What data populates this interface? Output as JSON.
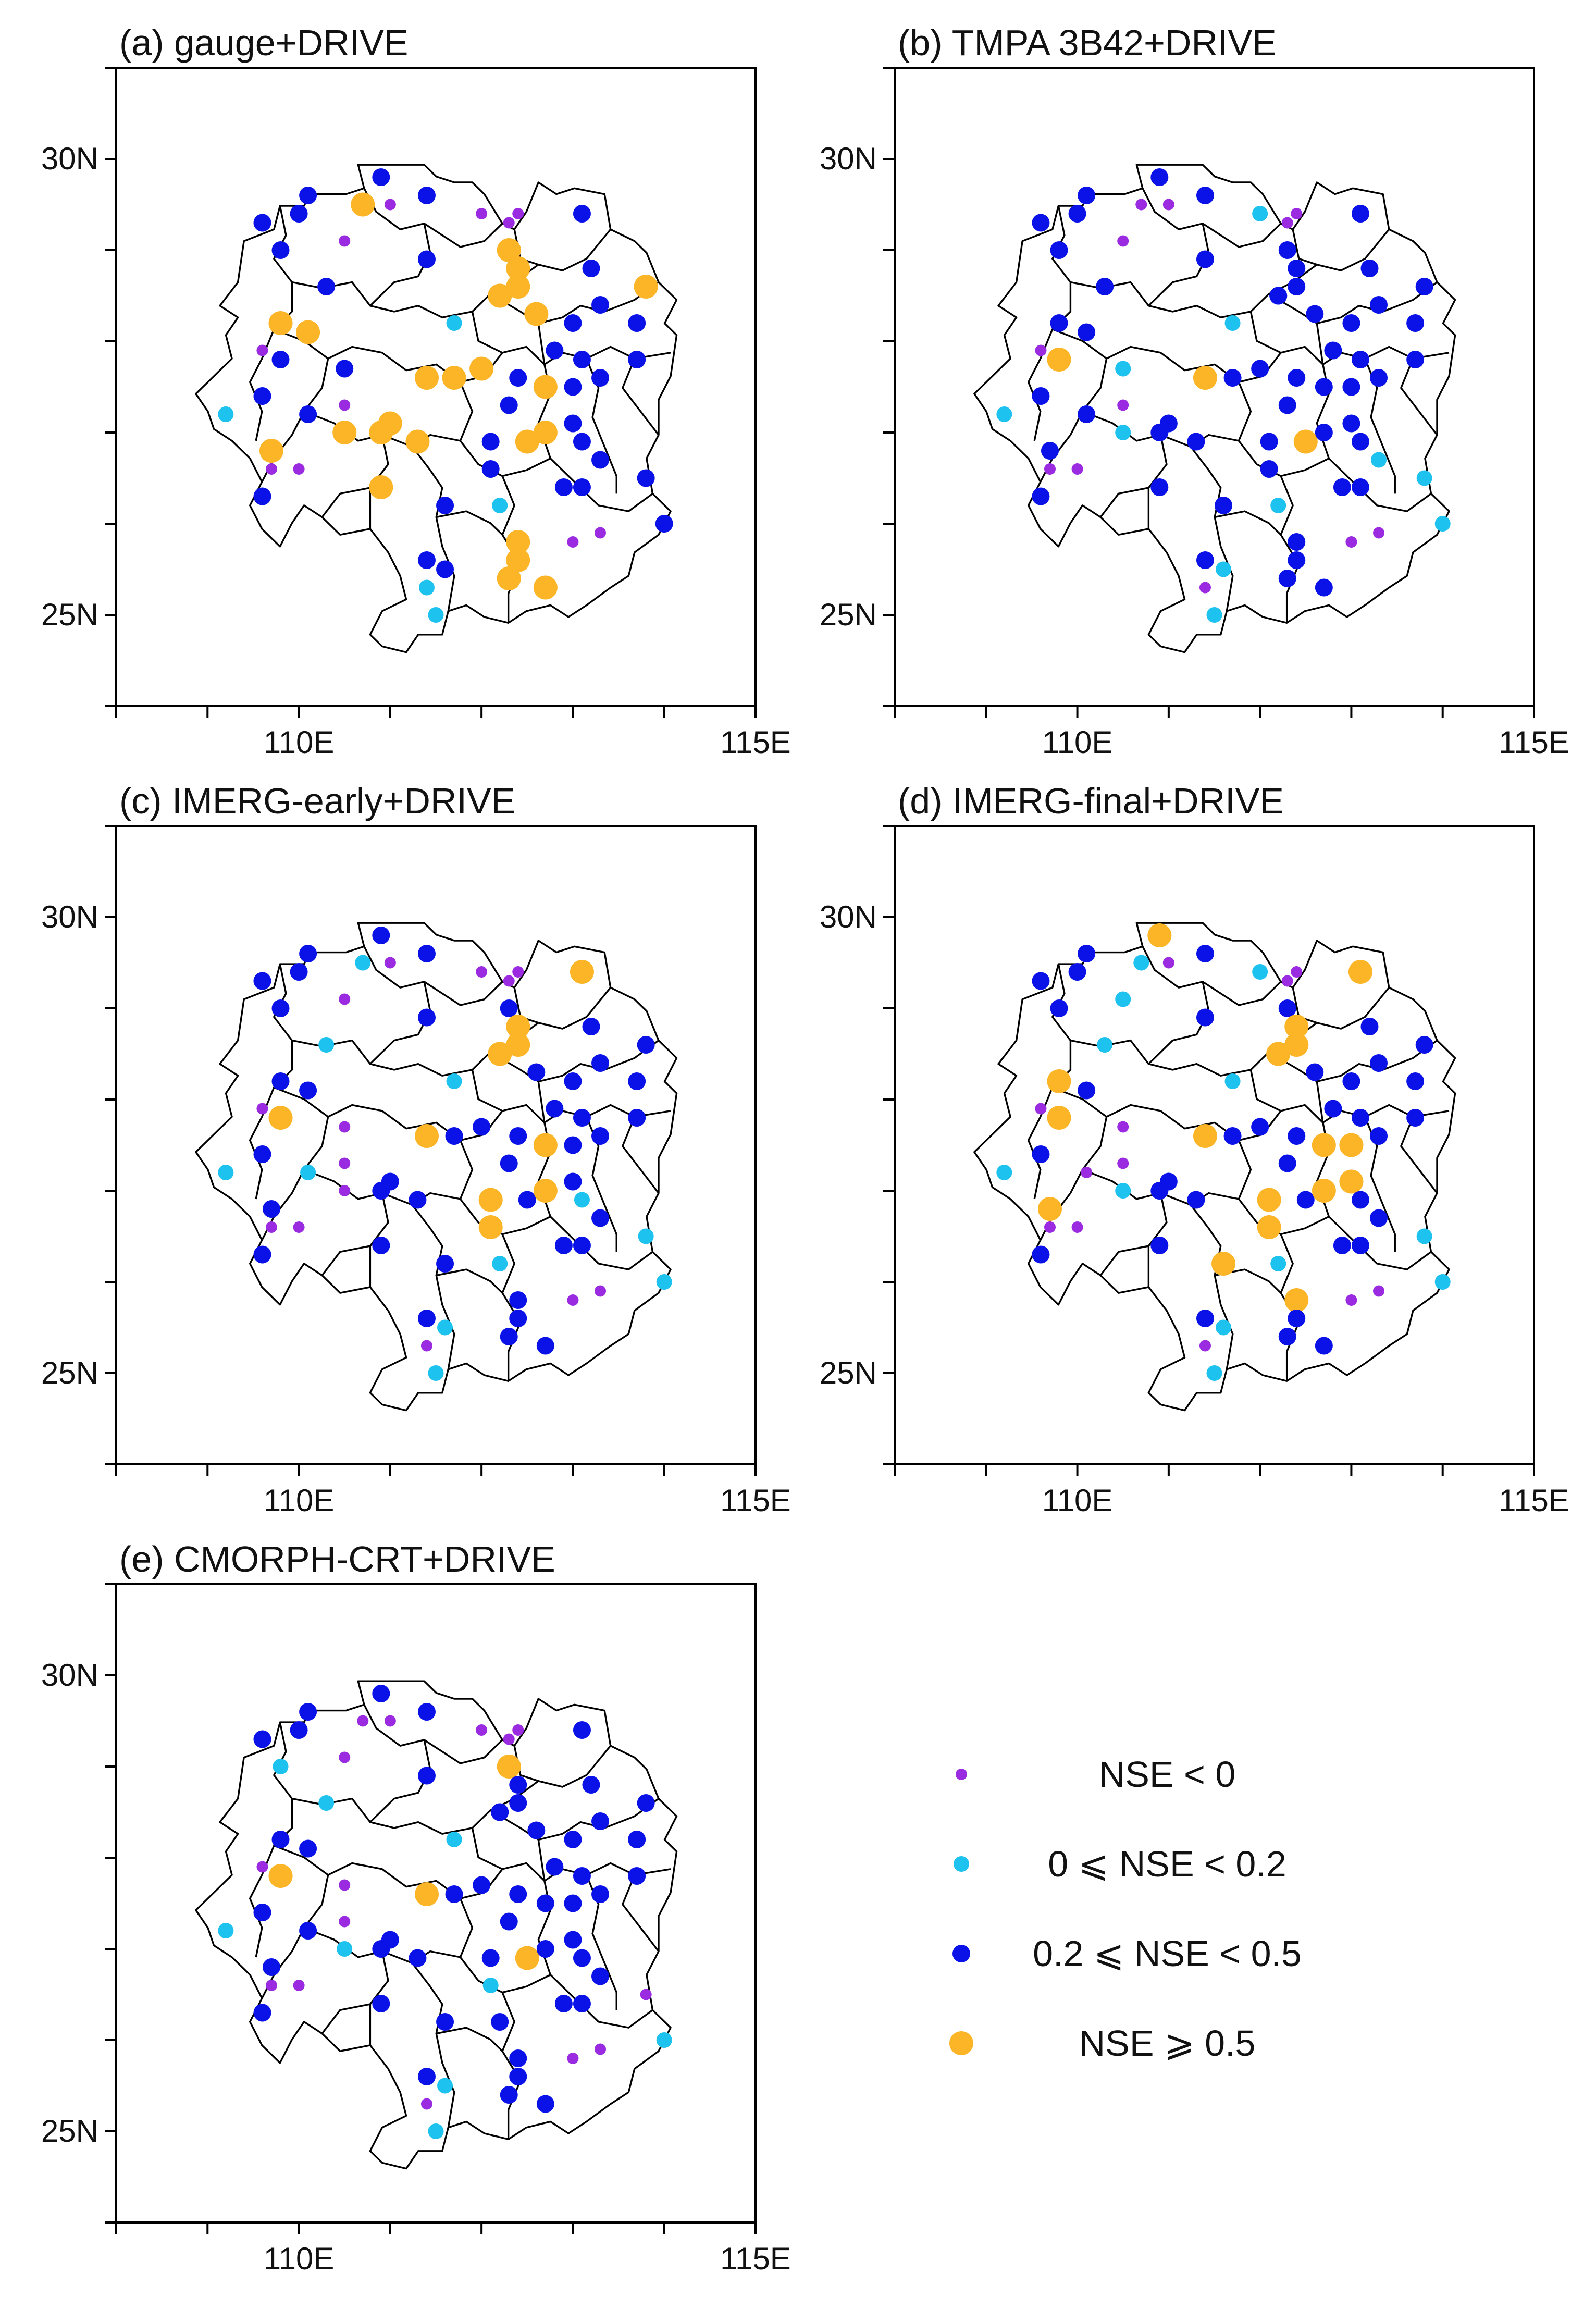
{
  "figure": {
    "lon_range": [
      108,
      115
    ],
    "lat_range": [
      24,
      31
    ],
    "lon_ticks": [
      108,
      109,
      110,
      111,
      112,
      113,
      114,
      115
    ],
    "lat_ticks": [
      24,
      25,
      26,
      27,
      28,
      29,
      30,
      31
    ],
    "lon_labels": [
      {
        "lon": 110,
        "text": "110E"
      },
      {
        "lon": 115,
        "text": "115E"
      }
    ],
    "lat_labels": [
      {
        "lat": 30,
        "text": "30N"
      },
      {
        "lat": 25,
        "text": "25N"
      }
    ]
  },
  "legend": [
    {
      "cls": 0,
      "label": "NSE < 0",
      "color": "#9b2be0"
    },
    {
      "cls": 1,
      "label": "0 ⩽ NSE < 0.2",
      "color": "#1ec2ef"
    },
    {
      "cls": 2,
      "label": "0.2 ⩽ NSE < 0.5",
      "color": "#0a12e8"
    },
    {
      "cls": 3,
      "label": "NSE ⩾ 0.5",
      "color": "#fbb526"
    }
  ],
  "stations": [
    {
      "lon": 109.6,
      "lat": 29.3
    },
    {
      "lon": 110.1,
      "lat": 29.6
    },
    {
      "lon": 110.0,
      "lat": 29.4
    },
    {
      "lon": 110.7,
      "lat": 29.5
    },
    {
      "lon": 110.9,
      "lat": 29.8
    },
    {
      "lon": 111.4,
      "lat": 29.6
    },
    {
      "lon": 111.0,
      "lat": 29.5
    },
    {
      "lon": 112.0,
      "lat": 29.4
    },
    {
      "lon": 112.3,
      "lat": 29.3
    },
    {
      "lon": 112.4,
      "lat": 29.4
    },
    {
      "lon": 113.1,
      "lat": 29.4
    },
    {
      "lon": 109.8,
      "lat": 29.0
    },
    {
      "lon": 110.5,
      "lat": 29.1
    },
    {
      "lon": 111.4,
      "lat": 28.9
    },
    {
      "lon": 112.3,
      "lat": 29.0
    },
    {
      "lon": 112.4,
      "lat": 28.8
    },
    {
      "lon": 112.2,
      "lat": 28.5
    },
    {
      "lon": 112.4,
      "lat": 28.6
    },
    {
      "lon": 110.3,
      "lat": 28.6
    },
    {
      "lon": 109.8,
      "lat": 28.2
    },
    {
      "lon": 110.1,
      "lat": 28.1
    },
    {
      "lon": 111.7,
      "lat": 28.2
    },
    {
      "lon": 112.6,
      "lat": 28.3
    },
    {
      "lon": 113.2,
      "lat": 28.8
    },
    {
      "lon": 113.8,
      "lat": 28.6
    },
    {
      "lon": 112.2,
      "lat": 28.5
    },
    {
      "lon": 113.0,
      "lat": 28.2
    },
    {
      "lon": 113.3,
      "lat": 28.4
    },
    {
      "lon": 113.7,
      "lat": 28.2
    },
    {
      "lon": 109.6,
      "lat": 27.9
    },
    {
      "lon": 109.8,
      "lat": 27.8
    },
    {
      "lon": 110.5,
      "lat": 27.7
    },
    {
      "lon": 111.4,
      "lat": 27.6
    },
    {
      "lon": 111.7,
      "lat": 27.6
    },
    {
      "lon": 112.0,
      "lat": 27.7
    },
    {
      "lon": 112.4,
      "lat": 27.6
    },
    {
      "lon": 112.8,
      "lat": 27.9
    },
    {
      "lon": 113.1,
      "lat": 27.8
    },
    {
      "lon": 113.7,
      "lat": 27.8
    },
    {
      "lon": 112.3,
      "lat": 27.3
    },
    {
      "lon": 112.7,
      "lat": 27.5
    },
    {
      "lon": 113.0,
      "lat": 27.5
    },
    {
      "lon": 113.3,
      "lat": 27.6
    },
    {
      "lon": 109.2,
      "lat": 27.2
    },
    {
      "lon": 109.6,
      "lat": 27.4
    },
    {
      "lon": 110.1,
      "lat": 27.2
    },
    {
      "lon": 110.5,
      "lat": 27.3
    },
    {
      "lon": 110.5,
      "lat": 27.0
    },
    {
      "lon": 110.9,
      "lat": 27.0
    },
    {
      "lon": 111.0,
      "lat": 27.1
    },
    {
      "lon": 111.3,
      "lat": 26.9
    },
    {
      "lon": 112.1,
      "lat": 26.9
    },
    {
      "lon": 112.5,
      "lat": 26.9
    },
    {
      "lon": 112.7,
      "lat": 27.0
    },
    {
      "lon": 113.0,
      "lat": 27.1
    },
    {
      "lon": 113.1,
      "lat": 26.9
    },
    {
      "lon": 109.7,
      "lat": 26.8
    },
    {
      "lon": 109.7,
      "lat": 26.6
    },
    {
      "lon": 110.0,
      "lat": 26.6
    },
    {
      "lon": 110.9,
      "lat": 26.4
    },
    {
      "lon": 111.6,
      "lat": 26.2
    },
    {
      "lon": 112.1,
      "lat": 26.6
    },
    {
      "lon": 112.2,
      "lat": 26.2
    },
    {
      "lon": 112.9,
      "lat": 26.4
    },
    {
      "lon": 113.1,
      "lat": 26.4
    },
    {
      "lon": 113.3,
      "lat": 26.7
    },
    {
      "lon": 113.8,
      "lat": 26.5
    },
    {
      "lon": 109.6,
      "lat": 26.3
    },
    {
      "lon": 112.4,
      "lat": 25.8
    },
    {
      "lon": 112.4,
      "lat": 25.6
    },
    {
      "lon": 113.3,
      "lat": 25.9
    },
    {
      "lon": 113.0,
      "lat": 25.8
    },
    {
      "lon": 114.0,
      "lat": 26.0
    },
    {
      "lon": 111.4,
      "lat": 25.6
    },
    {
      "lon": 111.6,
      "lat": 25.5
    },
    {
      "lon": 112.3,
      "lat": 25.4
    },
    {
      "lon": 111.4,
      "lat": 25.3
    },
    {
      "lon": 112.7,
      "lat": 25.3
    },
    {
      "lon": 111.5,
      "lat": 25.0
    }
  ],
  "panels": [
    {
      "title": "(a) gauge+DRIVE",
      "classes": [
        2,
        2,
        2,
        3,
        2,
        2,
        0,
        0,
        0,
        0,
        2,
        2,
        0,
        2,
        3,
        3,
        3,
        3,
        2,
        3,
        3,
        1,
        3,
        2,
        3,
        3,
        2,
        2,
        2,
        0,
        2,
        2,
        3,
        3,
        3,
        2,
        2,
        2,
        2,
        2,
        3,
        2,
        2,
        1,
        2,
        2,
        0,
        3,
        3,
        3,
        3,
        2,
        3,
        3,
        2,
        2,
        3,
        0,
        0,
        3,
        2,
        2,
        1,
        2,
        2,
        2,
        2,
        2,
        3,
        3,
        0,
        0,
        2,
        2,
        2,
        3,
        1,
        3,
        1
      ]
    },
    {
      "title": "(b) TMPA 3B42+DRIVE",
      "classes": [
        2,
        2,
        2,
        0,
        2,
        2,
        0,
        1,
        0,
        0,
        2,
        2,
        0,
        2,
        2,
        2,
        2,
        2,
        2,
        2,
        2,
        1,
        2,
        2,
        2,
        2,
        2,
        2,
        2,
        0,
        3,
        1,
        3,
        2,
        2,
        2,
        2,
        2,
        2,
        2,
        2,
        2,
        2,
        1,
        2,
        2,
        0,
        1,
        2,
        2,
        2,
        2,
        3,
        2,
        2,
        2,
        2,
        0,
        0,
        2,
        2,
        2,
        1,
        2,
        2,
        1,
        1,
        2,
        2,
        2,
        0,
        0,
        1,
        2,
        1,
        2,
        0,
        2,
        1
      ]
    },
    {
      "title": "(c) IMERG-early+DRIVE",
      "classes": [
        2,
        2,
        2,
        1,
        2,
        2,
        0,
        0,
        0,
        0,
        3,
        2,
        0,
        2,
        2,
        3,
        3,
        3,
        1,
        2,
        2,
        1,
        2,
        2,
        2,
        3,
        2,
        2,
        2,
        0,
        3,
        0,
        3,
        2,
        2,
        2,
        2,
        2,
        2,
        2,
        3,
        2,
        2,
        1,
        2,
        1,
        0,
        0,
        2,
        2,
        2,
        3,
        2,
        3,
        2,
        1,
        2,
        0,
        0,
        2,
        2,
        3,
        1,
        2,
        2,
        2,
        1,
        2,
        2,
        2,
        0,
        0,
        1,
        2,
        1,
        2,
        0,
        2,
        1
      ]
    },
    {
      "title": "(d) IMERG-final+DRIVE",
      "classes": [
        2,
        2,
        2,
        1,
        3,
        2,
        0,
        1,
        0,
        0,
        3,
        2,
        1,
        2,
        2,
        3,
        3,
        3,
        1,
        3,
        2,
        1,
        2,
        2,
        2,
        3,
        2,
        2,
        2,
        0,
        3,
        0,
        3,
        2,
        2,
        2,
        2,
        2,
        2,
        2,
        3,
        3,
        2,
        1,
        2,
        0,
        0,
        1,
        2,
        2,
        2,
        3,
        2,
        3,
        3,
        2,
        3,
        0,
        0,
        2,
        3,
        3,
        1,
        2,
        2,
        2,
        1,
        2,
        3,
        2,
        0,
        0,
        1,
        2,
        1,
        2,
        0,
        2,
        1
      ]
    },
    {
      "title": "(e) CMORPH-CRT+DRIVE",
      "classes": [
        2,
        2,
        2,
        0,
        2,
        2,
        0,
        0,
        0,
        0,
        2,
        1,
        0,
        2,
        3,
        2,
        2,
        2,
        1,
        2,
        2,
        1,
        2,
        2,
        2,
        2,
        2,
        2,
        2,
        0,
        3,
        0,
        3,
        2,
        2,
        2,
        2,
        2,
        2,
        2,
        2,
        2,
        2,
        1,
        2,
        2,
        0,
        1,
        2,
        2,
        2,
        2,
        3,
        2,
        2,
        2,
        2,
        0,
        0,
        2,
        2,
        1,
        2,
        2,
        2,
        2,
        0,
        2,
        2,
        2,
        0,
        0,
        1,
        2,
        1,
        2,
        0,
        2,
        1
      ]
    }
  ]
}
